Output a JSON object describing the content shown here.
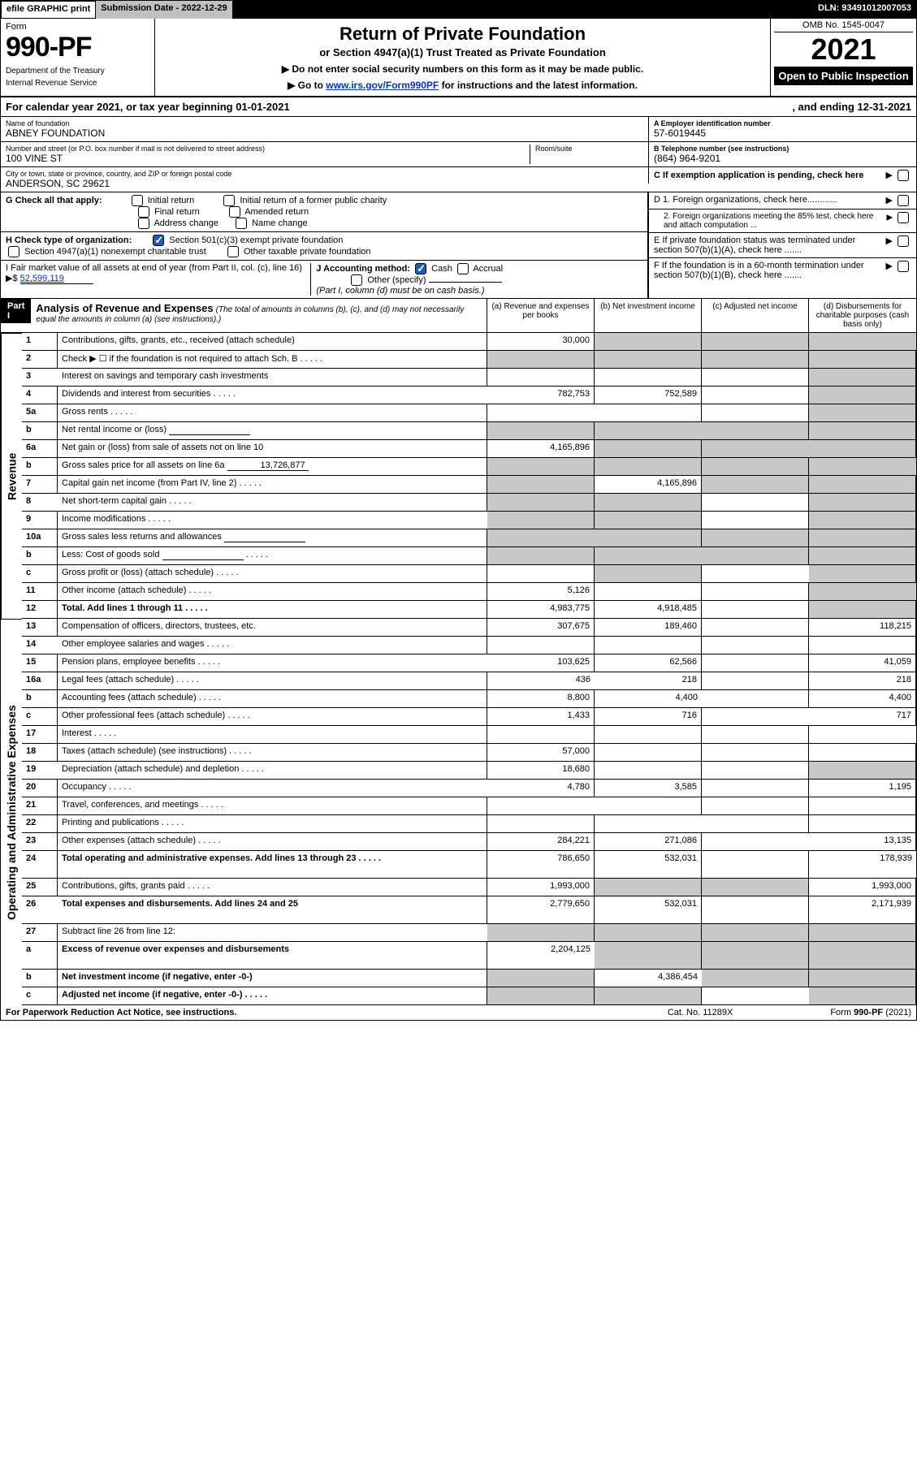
{
  "topbar": {
    "efile": "efile GRAPHIC print",
    "subdate_label": "Submission Date - ",
    "subdate": "2022-12-29",
    "dln_label": "DLN: ",
    "dln": "93491012007053"
  },
  "head": {
    "form_label": "Form",
    "form_no": "990-PF",
    "dept1": "Department of the Treasury",
    "dept2": "Internal Revenue Service",
    "title": "Return of Private Foundation",
    "subtitle": "or Section 4947(a)(1) Trust Treated as Private Foundation",
    "warn1": "▶ Do not enter social security numbers on this form as it may be made public.",
    "warn2_pre": "▶ Go to ",
    "warn2_link": "www.irs.gov/Form990PF",
    "warn2_post": " for instructions and the latest information.",
    "omb": "OMB No. 1545-0047",
    "year": "2021",
    "open_pub": "Open to Public Inspection"
  },
  "cal": {
    "text": "For calendar year 2021, or tax year beginning 01-01-2021",
    "ending": ", and ending 12-31-2021"
  },
  "addr": {
    "name_lab": "Name of foundation",
    "name": "ABNEY FOUNDATION",
    "street_lab": "Number and street (or P.O. box number if mail is not delivered to street address)",
    "room_lab": "Room/suite",
    "street": "100 VINE ST",
    "city_lab": "City or town, state or province, country, and ZIP or foreign postal code",
    "city": "ANDERSON, SC  29621",
    "ein_lab": "A Employer identification number",
    "ein": "57-6019445",
    "tel_lab": "B Telephone number (see instructions)",
    "tel": "(864) 964-9201",
    "c_lab": "C If exemption application is pending, check here"
  },
  "g": {
    "label": "G Check all that apply:",
    "opts": [
      "Initial return",
      "Final return",
      "Address change",
      "Initial return of a former public charity",
      "Amended return",
      "Name change"
    ]
  },
  "h": {
    "label": "H Check type of organization:",
    "opt1": "Section 501(c)(3) exempt private foundation",
    "opt2": "Section 4947(a)(1) nonexempt charitable trust",
    "opt3": "Other taxable private foundation"
  },
  "i": {
    "label": "I Fair market value of all assets at end of year (from Part II, col. (c), line 16)",
    "arrow": "▶$",
    "val": "52,599,119"
  },
  "j": {
    "label": "J Accounting method:",
    "cash": "Cash",
    "accrual": "Accrual",
    "other": "Other (specify)",
    "note": "(Part I, column (d) must be on cash basis.)"
  },
  "d": {
    "d1": "D 1. Foreign organizations, check here............",
    "d2": "2. Foreign organizations meeting the 85% test, check here and attach computation ...",
    "e": "E  If private foundation status was terminated under section 507(b)(1)(A), check here .......",
    "f": "F  If the foundation is in a 60-month termination under section 507(b)(1)(B), check here ......."
  },
  "part1": {
    "part": "Part I",
    "title": "Analysis of Revenue and Expenses",
    "sub": "(The total of amounts in columns (b), (c), and (d) may not necessarily equal the amounts in column (a) (see instructions).)",
    "col_a": "(a)   Revenue and expenses per books",
    "col_b": "(b)   Net investment income",
    "col_c": "(c)   Adjusted net income",
    "col_d": "(d)   Disbursements for charitable purposes (cash basis only)",
    "side_rev": "Revenue",
    "side_exp": "Operating and Administrative Expenses"
  },
  "rows": [
    {
      "n": "1",
      "d": "Contributions, gifts, grants, etc., received (attach schedule)",
      "a": "30,000",
      "b": "",
      "c": "",
      "dcol": "",
      "shade_b": true,
      "shade_c": true,
      "shade_d": true
    },
    {
      "n": "2",
      "d": "Check ▶ ☐ if the foundation is not required to attach Sch. B",
      "a": "",
      "b": "",
      "c": "",
      "dcol": "",
      "shade_a": true,
      "shade_b": true,
      "shade_c": true,
      "shade_d": true,
      "dots": true
    },
    {
      "n": "3",
      "d": "Interest on savings and temporary cash investments",
      "a": "",
      "b": "",
      "c": "",
      "dcol": "",
      "shade_d": true
    },
    {
      "n": "4",
      "d": "Dividends and interest from securities",
      "a": "782,753",
      "b": "752,589",
      "c": "",
      "dcol": "",
      "shade_d": true,
      "dots": true
    },
    {
      "n": "5a",
      "d": "Gross rents",
      "a": "",
      "b": "",
      "c": "",
      "dcol": "",
      "shade_d": true,
      "dots": true
    },
    {
      "n": "b",
      "d": "Net rental income or (loss)",
      "a": "",
      "b": "",
      "c": "",
      "dcol": "",
      "shade_a": true,
      "shade_b": true,
      "shade_c": true,
      "shade_d": true,
      "inline": true
    },
    {
      "n": "6a",
      "d": "Net gain or (loss) from sale of assets not on line 10",
      "a": "4,165,896",
      "b": "",
      "c": "",
      "dcol": "",
      "shade_b": true,
      "shade_c": true,
      "shade_d": true
    },
    {
      "n": "b",
      "d": "Gross sales price for all assets on line 6a",
      "a": "",
      "b": "",
      "c": "",
      "dcol": "",
      "shade_a": true,
      "shade_b": true,
      "shade_c": true,
      "shade_d": true,
      "inline_val": "13,726,877"
    },
    {
      "n": "7",
      "d": "Capital gain net income (from Part IV, line 2)",
      "a": "",
      "b": "4,165,896",
      "c": "",
      "dcol": "",
      "shade_a": true,
      "shade_c": true,
      "shade_d": true,
      "dots": true
    },
    {
      "n": "8",
      "d": "Net short-term capital gain",
      "a": "",
      "b": "",
      "c": "",
      "dcol": "",
      "shade_a": true,
      "shade_b": true,
      "shade_d": true,
      "dots": true
    },
    {
      "n": "9",
      "d": "Income modifications",
      "a": "",
      "b": "",
      "c": "",
      "dcol": "",
      "shade_a": true,
      "shade_b": true,
      "shade_d": true,
      "dots": true
    },
    {
      "n": "10a",
      "d": "Gross sales less returns and allowances",
      "a": "",
      "b": "",
      "c": "",
      "dcol": "",
      "shade_a": true,
      "shade_b": true,
      "shade_c": true,
      "shade_d": true,
      "inline": true
    },
    {
      "n": "b",
      "d": "Less: Cost of goods sold",
      "a": "",
      "b": "",
      "c": "",
      "dcol": "",
      "shade_a": true,
      "shade_b": true,
      "shade_c": true,
      "shade_d": true,
      "inline": true,
      "dots": true
    },
    {
      "n": "c",
      "d": "Gross profit or (loss) (attach schedule)",
      "a": "",
      "b": "",
      "c": "",
      "dcol": "",
      "shade_b": true,
      "shade_d": true,
      "dots": true
    },
    {
      "n": "11",
      "d": "Other income (attach schedule)",
      "a": "5,126",
      "b": "",
      "c": "",
      "dcol": "",
      "shade_d": true,
      "dots": true
    },
    {
      "n": "12",
      "d": "Total. Add lines 1 through 11",
      "a": "4,983,775",
      "b": "4,918,485",
      "c": "",
      "dcol": "",
      "shade_d": true,
      "bold": true,
      "dots": true
    },
    {
      "n": "13",
      "d": "Compensation of officers, directors, trustees, etc.",
      "a": "307,675",
      "b": "189,460",
      "c": "",
      "dcol": "118,215"
    },
    {
      "n": "14",
      "d": "Other employee salaries and wages",
      "a": "",
      "b": "",
      "c": "",
      "dcol": "",
      "dots": true
    },
    {
      "n": "15",
      "d": "Pension plans, employee benefits",
      "a": "103,625",
      "b": "62,566",
      "c": "",
      "dcol": "41,059",
      "dots": true
    },
    {
      "n": "16a",
      "d": "Legal fees (attach schedule)",
      "a": "436",
      "b": "218",
      "c": "",
      "dcol": "218",
      "dots": true
    },
    {
      "n": "b",
      "d": "Accounting fees (attach schedule)",
      "a": "8,800",
      "b": "4,400",
      "c": "",
      "dcol": "4,400",
      "dots": true
    },
    {
      "n": "c",
      "d": "Other professional fees (attach schedule)",
      "a": "1,433",
      "b": "716",
      "c": "",
      "dcol": "717",
      "dots": true
    },
    {
      "n": "17",
      "d": "Interest",
      "a": "",
      "b": "",
      "c": "",
      "dcol": "",
      "dots": true
    },
    {
      "n": "18",
      "d": "Taxes (attach schedule) (see instructions)",
      "a": "57,000",
      "b": "",
      "c": "",
      "dcol": "",
      "dots": true
    },
    {
      "n": "19",
      "d": "Depreciation (attach schedule) and depletion",
      "a": "18,680",
      "b": "",
      "c": "",
      "dcol": "",
      "shade_d": true,
      "dots": true
    },
    {
      "n": "20",
      "d": "Occupancy",
      "a": "4,780",
      "b": "3,585",
      "c": "",
      "dcol": "1,195",
      "dots": true
    },
    {
      "n": "21",
      "d": "Travel, conferences, and meetings",
      "a": "",
      "b": "",
      "c": "",
      "dcol": "",
      "dots": true
    },
    {
      "n": "22",
      "d": "Printing and publications",
      "a": "",
      "b": "",
      "c": "",
      "dcol": "",
      "dots": true
    },
    {
      "n": "23",
      "d": "Other expenses (attach schedule)",
      "a": "284,221",
      "b": "271,086",
      "c": "",
      "dcol": "13,135",
      "dots": true
    },
    {
      "n": "24",
      "d": "Total operating and administrative expenses. Add lines 13 through 23",
      "a": "786,650",
      "b": "532,031",
      "c": "",
      "dcol": "178,939",
      "bold": true,
      "dots": true,
      "twoline": true
    },
    {
      "n": "25",
      "d": "Contributions, gifts, grants paid",
      "a": "1,993,000",
      "b": "",
      "c": "",
      "dcol": "1,993,000",
      "shade_b": true,
      "shade_c": true,
      "dots": true
    },
    {
      "n": "26",
      "d": "Total expenses and disbursements. Add lines 24 and 25",
      "a": "2,779,650",
      "b": "532,031",
      "c": "",
      "dcol": "2,171,939",
      "bold": true,
      "twoline": true
    },
    {
      "n": "27",
      "d": "Subtract line 26 from line 12:",
      "a": "",
      "b": "",
      "c": "",
      "dcol": "",
      "shade_a": true,
      "shade_b": true,
      "shade_c": true,
      "shade_d": true
    },
    {
      "n": "a",
      "d": "Excess of revenue over expenses and disbursements",
      "a": "2,204,125",
      "b": "",
      "c": "",
      "dcol": "",
      "shade_b": true,
      "shade_c": true,
      "shade_d": true,
      "bold": true,
      "twoline": true
    },
    {
      "n": "b",
      "d": "Net investment income (if negative, enter -0-)",
      "a": "",
      "b": "4,386,454",
      "c": "",
      "dcol": "",
      "shade_a": true,
      "shade_c": true,
      "shade_d": true,
      "bold": true
    },
    {
      "n": "c",
      "d": "Adjusted net income (if negative, enter -0-)",
      "a": "",
      "b": "",
      "c": "",
      "dcol": "",
      "shade_a": true,
      "shade_b": true,
      "shade_d": true,
      "bold": true,
      "dots": true
    }
  ],
  "footer": {
    "left": "For Paperwork Reduction Act Notice, see instructions.",
    "mid": "Cat. No. 11289X",
    "right": "Form 990-PF (2021)"
  }
}
